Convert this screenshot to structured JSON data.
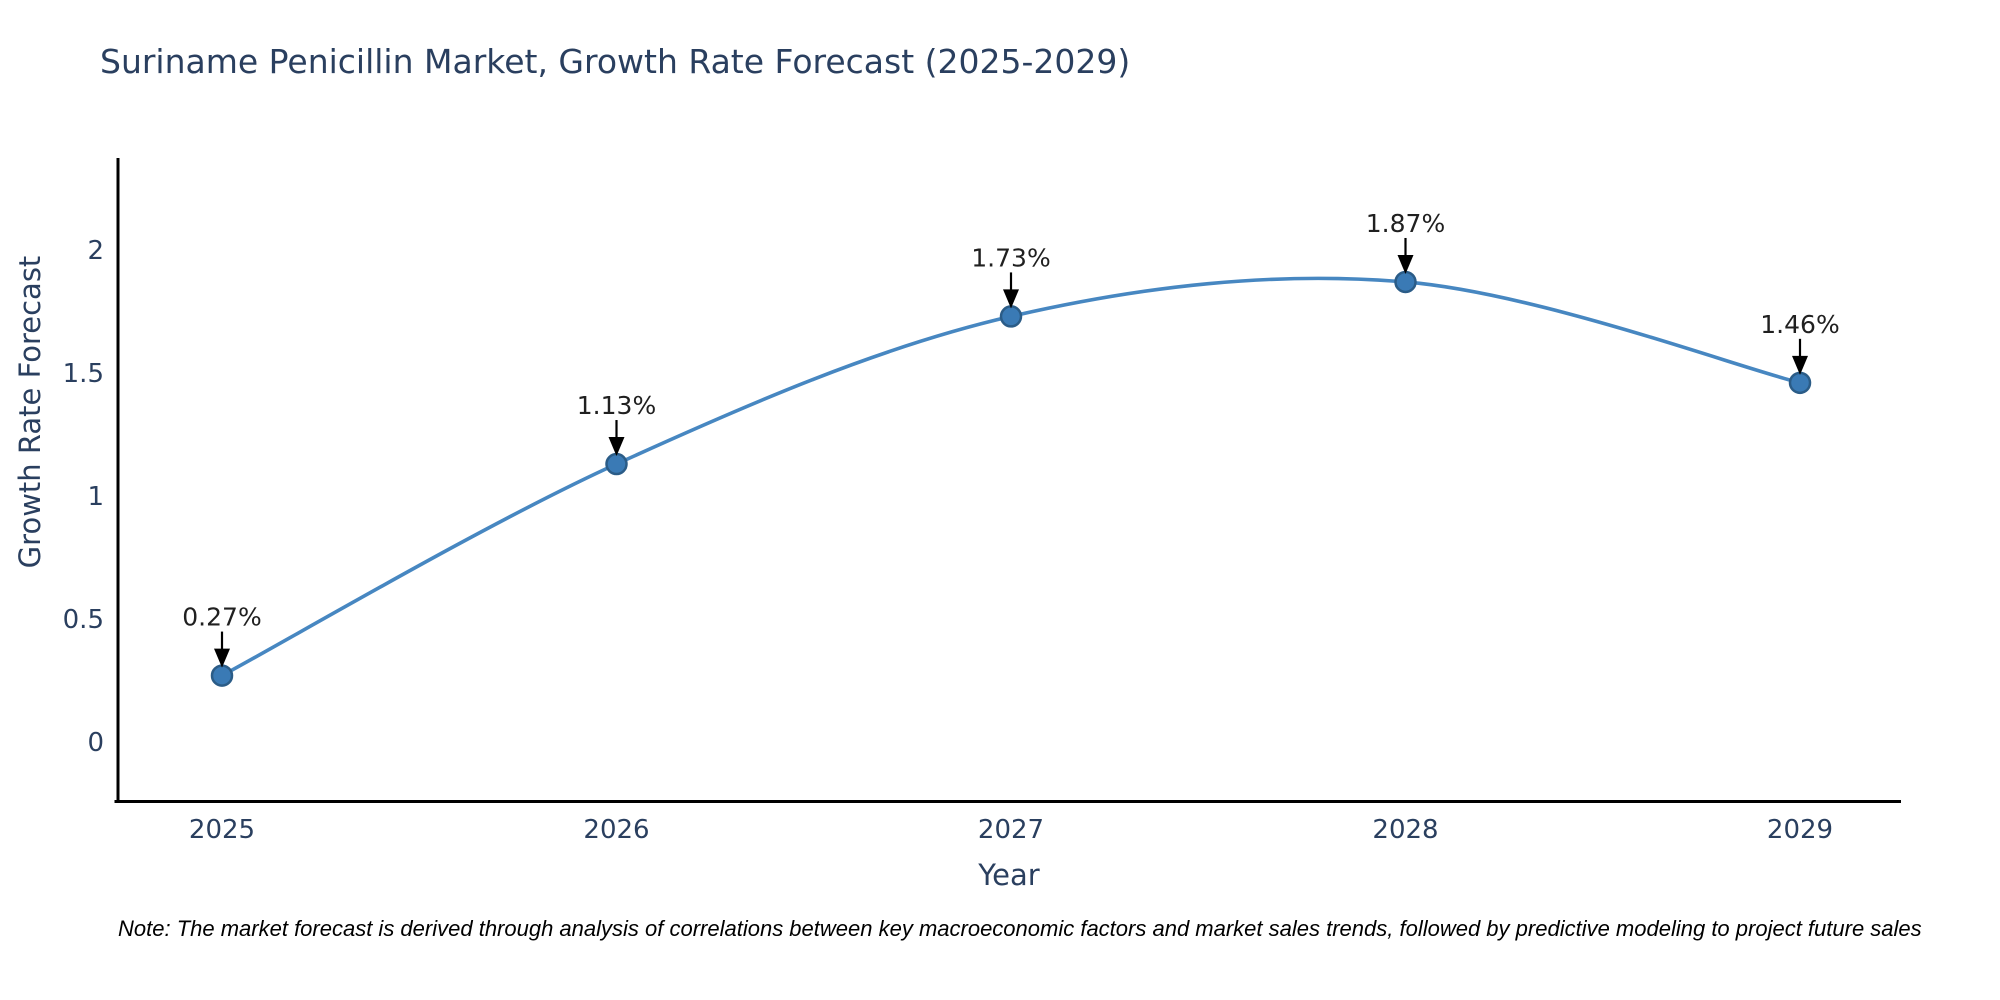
{
  "title": "Suriname Penicillin Market, Growth Rate Forecast (2025-2029)",
  "note": {
    "text": "Note: The market forecast is derived through analysis of correlations between key macroeconomic factors and market sales trends, followed by predictive modeling to project future sales"
  },
  "chart_data": {
    "type": "line",
    "title": "Suriname Penicillin Market, Growth Rate Forecast (2025-2029)",
    "xlabel": "Year",
    "ylabel": "Growth Rate Forecast",
    "categories": [
      "2025",
      "2026",
      "2027",
      "2028",
      "2029"
    ],
    "x": [
      2025,
      2026,
      2027,
      2028,
      2029
    ],
    "series": [
      {
        "name": "Growth Rate Forecast",
        "values": [
          0.27,
          1.13,
          1.73,
          1.87,
          1.46
        ]
      }
    ],
    "point_labels": [
      "0.27%",
      "1.13%",
      "1.73%",
      "1.87%",
      "1.46%"
    ],
    "yticks": [
      0,
      0.5,
      1,
      1.5,
      2
    ],
    "ytick_labels": [
      "0",
      "0.5",
      "1",
      "1.5",
      "2"
    ],
    "ylim": [
      -0.24,
      2.37
    ],
    "grid": false,
    "legend": "none",
    "colors": {
      "line": "#4787c1",
      "marker_fill": "#3a7ab5",
      "marker_edge": "#2b5c87",
      "axis_spine": "#000000",
      "annotation_arrow": "#000000",
      "annotation_text": "#202020",
      "axis_text": "#2a3f5f",
      "background": "#ffffff"
    }
  }
}
